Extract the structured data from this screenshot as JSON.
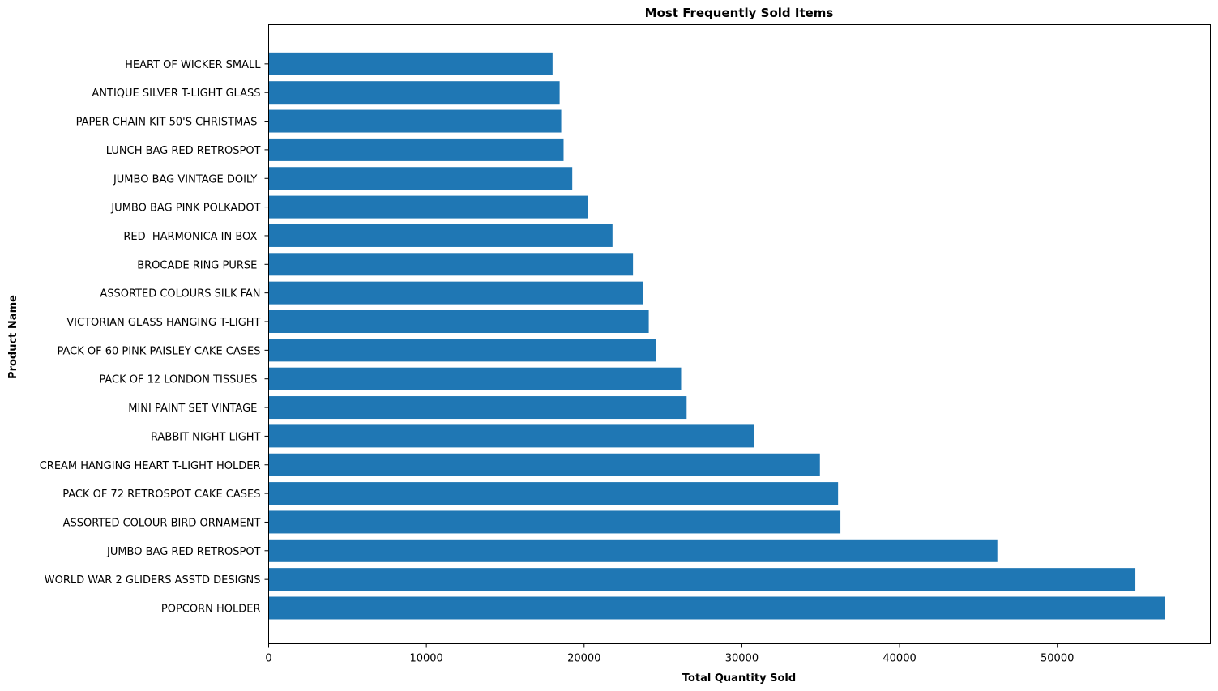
{
  "chart_data": {
    "type": "bar",
    "orientation": "horizontal",
    "title": "Most Frequently Sold Items",
    "xlabel": "Total Quantity Sold",
    "ylabel": "Product Name",
    "xlim": [
      0,
      59700
    ],
    "xticks": [
      0,
      10000,
      20000,
      30000,
      40000,
      50000
    ],
    "grid": false,
    "bar_color": "#1f77b4",
    "categories": [
      "POPCORN HOLDER",
      "WORLD WAR 2 GLIDERS ASSTD DESIGNS",
      "JUMBO BAG RED RETROSPOT",
      "ASSORTED COLOUR BIRD ORNAMENT",
      "PACK OF 72 RETROSPOT CAKE CASES",
      "CREAM HANGING HEART T-LIGHT HOLDER",
      "RABBIT NIGHT LIGHT",
      "MINI PAINT SET VINTAGE ",
      "PACK OF 12 LONDON TISSUES ",
      "PACK OF 60 PINK PAISLEY CAKE CASES",
      "VICTORIAN GLASS HANGING T-LIGHT",
      "ASSORTED COLOURS SILK FAN",
      "BROCADE RING PURSE ",
      "RED  HARMONICA IN BOX ",
      "JUMBO BAG PINK POLKADOT",
      "JUMBO BAG VINTAGE DOILY ",
      "LUNCH BAG RED RETROSPOT",
      "PAPER CHAIN KIT 50'S CHRISTMAS ",
      "ANTIQUE SILVER T-LIGHT GLASS",
      "HEART OF WICKER SMALL"
    ],
    "values": [
      56800,
      54950,
      46200,
      36250,
      36100,
      34950,
      30750,
      26500,
      26150,
      24550,
      24100,
      23750,
      23100,
      21800,
      20250,
      19250,
      18700,
      18550,
      18450,
      18000
    ]
  }
}
